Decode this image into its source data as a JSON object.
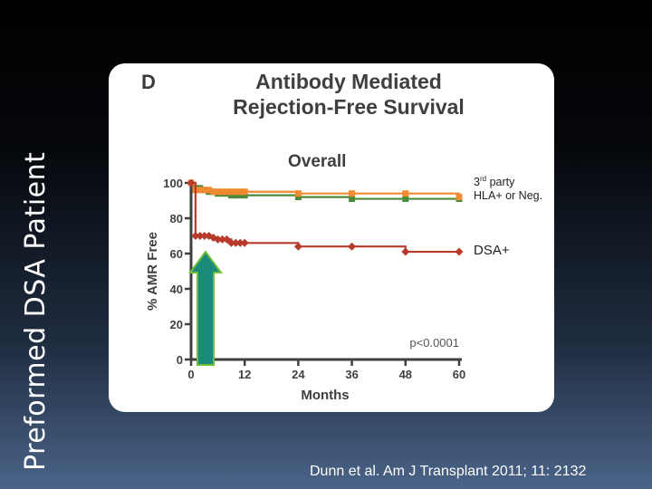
{
  "slide": {
    "vertical_title": "Preformed DSA Patient",
    "citation": "Dunn et al. Am J Transplant 2011; 11: 2132"
  },
  "figure": {
    "panel_letter": "D",
    "title_line1": "Antibody Mediated",
    "title_line2": "Rejection-Free Survival",
    "subtitle": "Overall",
    "legend_a_sup": "rd",
    "legend_a_rest": "party HLA+ or Neg.",
    "legend_a_num": "3",
    "legend_b": "DSA+",
    "arrow_color": "#1a8a7a"
  },
  "chart_data": {
    "type": "line",
    "xlabel": "Months",
    "ylabel": "% AMR Free",
    "xlim": [
      0,
      60
    ],
    "ylim": [
      0,
      100
    ],
    "xticks": [
      0,
      12,
      24,
      36,
      48,
      60
    ],
    "yticks": [
      0,
      20,
      40,
      60,
      80,
      100
    ],
    "annotation": "p<0.0001",
    "series": [
      {
        "color": "#4a8a3a",
        "marker": "square",
        "x": [
          0,
          1,
          2,
          3,
          4,
          5,
          6,
          7,
          8,
          9,
          10,
          11,
          12,
          24,
          36,
          48,
          60
        ],
        "y": [
          100,
          97,
          97,
          96,
          95,
          95,
          94,
          94,
          94,
          93,
          93,
          93,
          93,
          92,
          91,
          91,
          91
        ]
      },
      {
        "color": "#f08a30",
        "marker": "square",
        "x": [
          0,
          1,
          2,
          3,
          4,
          5,
          6,
          7,
          8,
          9,
          10,
          11,
          12,
          24,
          36,
          48,
          60
        ],
        "y": [
          100,
          96,
          96,
          96,
          96,
          95,
          95,
          95,
          95,
          95,
          95,
          95,
          95,
          94,
          94,
          94,
          92
        ]
      },
      {
        "color": "#b83a2a",
        "marker": "diamond",
        "x": [
          0,
          1,
          2,
          3,
          4,
          5,
          6,
          7,
          8,
          9,
          10,
          11,
          12,
          24,
          36,
          48,
          60
        ],
        "y": [
          100,
          70,
          70,
          70,
          70,
          69,
          68,
          68,
          68,
          66,
          66,
          66,
          66,
          64,
          64,
          61,
          61
        ]
      }
    ]
  }
}
